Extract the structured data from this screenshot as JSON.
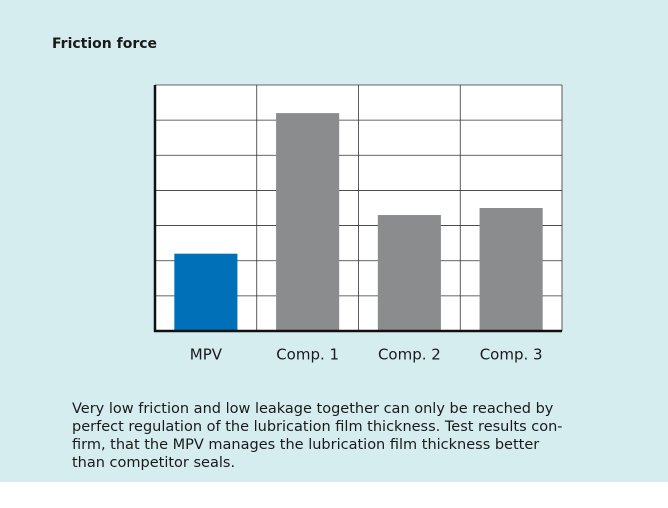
{
  "chart_data": {
    "type": "bar",
    "title": "Friction force",
    "categories": [
      "MPV",
      "Comp. 1",
      "Comp. 2",
      "Comp. 3"
    ],
    "values": [
      2.2,
      6.2,
      3.3,
      3.5
    ],
    "colors": [
      "#0070b8",
      "#8a8c8e",
      "#8a8c8e",
      "#8a8c8e"
    ],
    "ylim": [
      0,
      7
    ],
    "yticks": [
      0,
      1,
      2,
      3,
      4,
      5,
      6,
      7
    ],
    "grid": true,
    "caption": [
      "Very low friction and low leakage together can only be reached by",
      "perfect regulation of the lubrication film thickness. Test results con-",
      "firm, that the MPV manages the lubrication film thickness better",
      "than competitor seals."
    ]
  }
}
